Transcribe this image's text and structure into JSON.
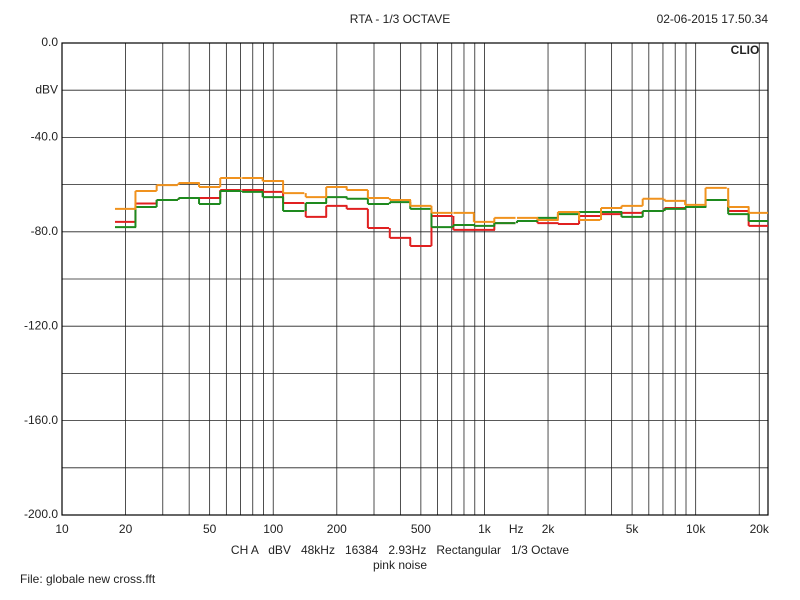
{
  "chart_data": {
    "type": "step",
    "title": "RTA - 1/3 OCTAVE",
    "timestamp": "02-06-2015 17.50.34",
    "brand": "CLIO",
    "y_label": "dBV",
    "x_label": "Hz",
    "settings": "CH A   dBV   48kHz   16384   2.93Hz   Rectangular   1/3 Octave",
    "signal": "pink noise",
    "file": "File: globale new cross.fft",
    "log_x": true,
    "grid": true,
    "xlim": [
      10,
      22000
    ],
    "ylim": [
      -200,
      0
    ],
    "xticks": [
      10,
      20,
      50,
      100,
      200,
      500,
      {
        "value": 1000,
        "label": "1k"
      },
      {
        "value": 2000,
        "label": "2k"
      },
      {
        "value": 5000,
        "label": "5k"
      },
      {
        "value": 10000,
        "label": "10k"
      },
      {
        "value": 20000,
        "label": "20k"
      }
    ],
    "minor_xticks": [
      30,
      40,
      60,
      70,
      80,
      90,
      300,
      400,
      600,
      700,
      800,
      900,
      3000,
      4000,
      6000,
      7000,
      8000,
      9000
    ],
    "yticks": [
      {
        "value": 0,
        "label": "0.0"
      },
      {
        "value": -40,
        "label": "-40.0"
      },
      {
        "value": -80,
        "label": "-80.0"
      },
      {
        "value": -120,
        "label": "-120.0"
      },
      {
        "value": -160,
        "label": "-160.0"
      },
      {
        "value": -200,
        "label": "-200.0"
      }
    ],
    "minor_yticks": [
      -20,
      -60,
      -100,
      -140,
      -180
    ],
    "x": [
      20,
      25,
      31.5,
      40,
      50,
      63,
      80,
      100,
      125,
      160,
      200,
      250,
      315,
      400,
      500,
      630,
      800,
      1000,
      1250,
      1600,
      2000,
      2500,
      3150,
      4000,
      5000,
      6300,
      8000,
      10000,
      12500,
      16000,
      20000
    ],
    "series": [
      {
        "color": "#e02020",
        "values": [
          -75.8,
          -68,
          -66.5,
          -65.7,
          -65.7,
          -62.3,
          -62.3,
          -63.1,
          -67.8,
          -73.7,
          -69,
          -70.3,
          -78.4,
          -82.6,
          -86,
          -73.3,
          -79.2,
          -79.2,
          -76.3,
          -75.4,
          -76.3,
          -76.7,
          -73.3,
          -72.5,
          -72,
          -71.2,
          -69.9,
          -69.5,
          -66.5,
          -71.2,
          -77.5
        ]
      },
      {
        "color": "#1e8a1e",
        "values": [
          -78,
          -69.5,
          -66.5,
          -65.7,
          -68.2,
          -62.7,
          -63.1,
          -65.3,
          -71.2,
          -67.8,
          -65.3,
          -66,
          -68.2,
          -67.4,
          -70.3,
          -78,
          -77.1,
          -77.5,
          -76.3,
          -75.4,
          -74.1,
          -72.5,
          -71.6,
          -71.6,
          -73.7,
          -71.2,
          -70.3,
          -69.5,
          -66.5,
          -72.5,
          -75.4
        ]
      },
      {
        "color": "#f0921e",
        "values": [
          -70.3,
          -62.7,
          -60.2,
          -59.3,
          -61,
          -57.2,
          -57.2,
          -58.5,
          -63.6,
          -65.3,
          -61,
          -62.3,
          -65.7,
          -66.5,
          -69,
          -72,
          -72,
          -75.8,
          -74.1,
          -74.1,
          -75,
          -71.6,
          -75,
          -69.9,
          -69,
          -66,
          -66.9,
          -68.6,
          -61.4,
          -69.5,
          -72
        ]
      }
    ]
  }
}
